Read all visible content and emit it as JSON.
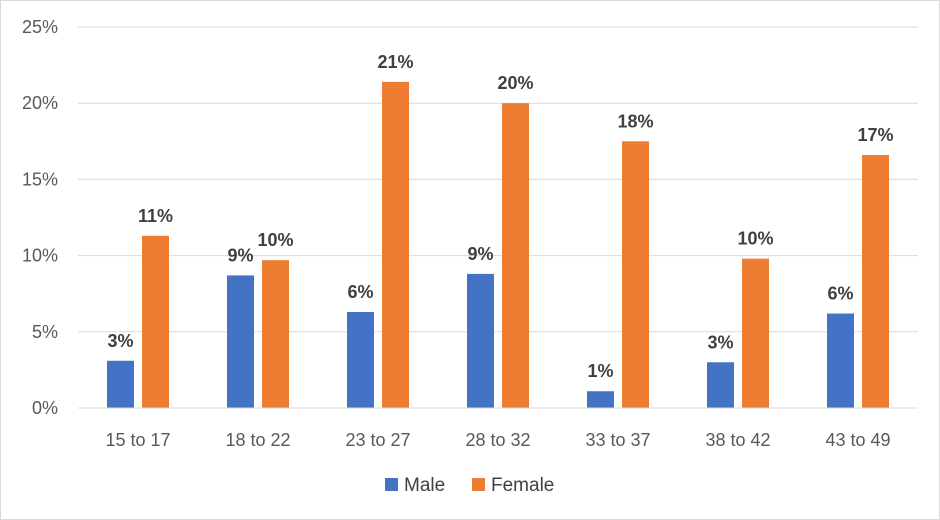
{
  "chart_data": {
    "type": "bar",
    "title": "",
    "xlabel": "",
    "ylabel": "",
    "categories": [
      "15 to 17",
      "18 to 22",
      "23 to 27",
      "28 to 32",
      "33 to 37",
      "38 to 42",
      "43 to 49"
    ],
    "series": [
      {
        "name": "Male",
        "color": "#4472c4",
        "values": [
          3.1,
          8.7,
          6.3,
          8.8,
          1.1,
          3.0,
          6.2
        ],
        "labels": [
          "3%",
          "9%",
          "6%",
          "9%",
          "1%",
          "3%",
          "6%"
        ]
      },
      {
        "name": "Female",
        "color": "#ed7d31",
        "values": [
          11.3,
          9.7,
          21.4,
          20.0,
          17.5,
          9.8,
          16.6
        ],
        "labels": [
          "11%",
          "10%",
          "21%",
          "20%",
          "18%",
          "10%",
          "17%"
        ]
      }
    ],
    "ylim": [
      0,
      25
    ],
    "yticks": [
      0,
      5,
      10,
      15,
      20,
      25
    ],
    "ytick_labels": [
      "0%",
      "5%",
      "10%",
      "15%",
      "20%",
      "25%"
    ],
    "grid": true,
    "legend": "bottom-center"
  }
}
